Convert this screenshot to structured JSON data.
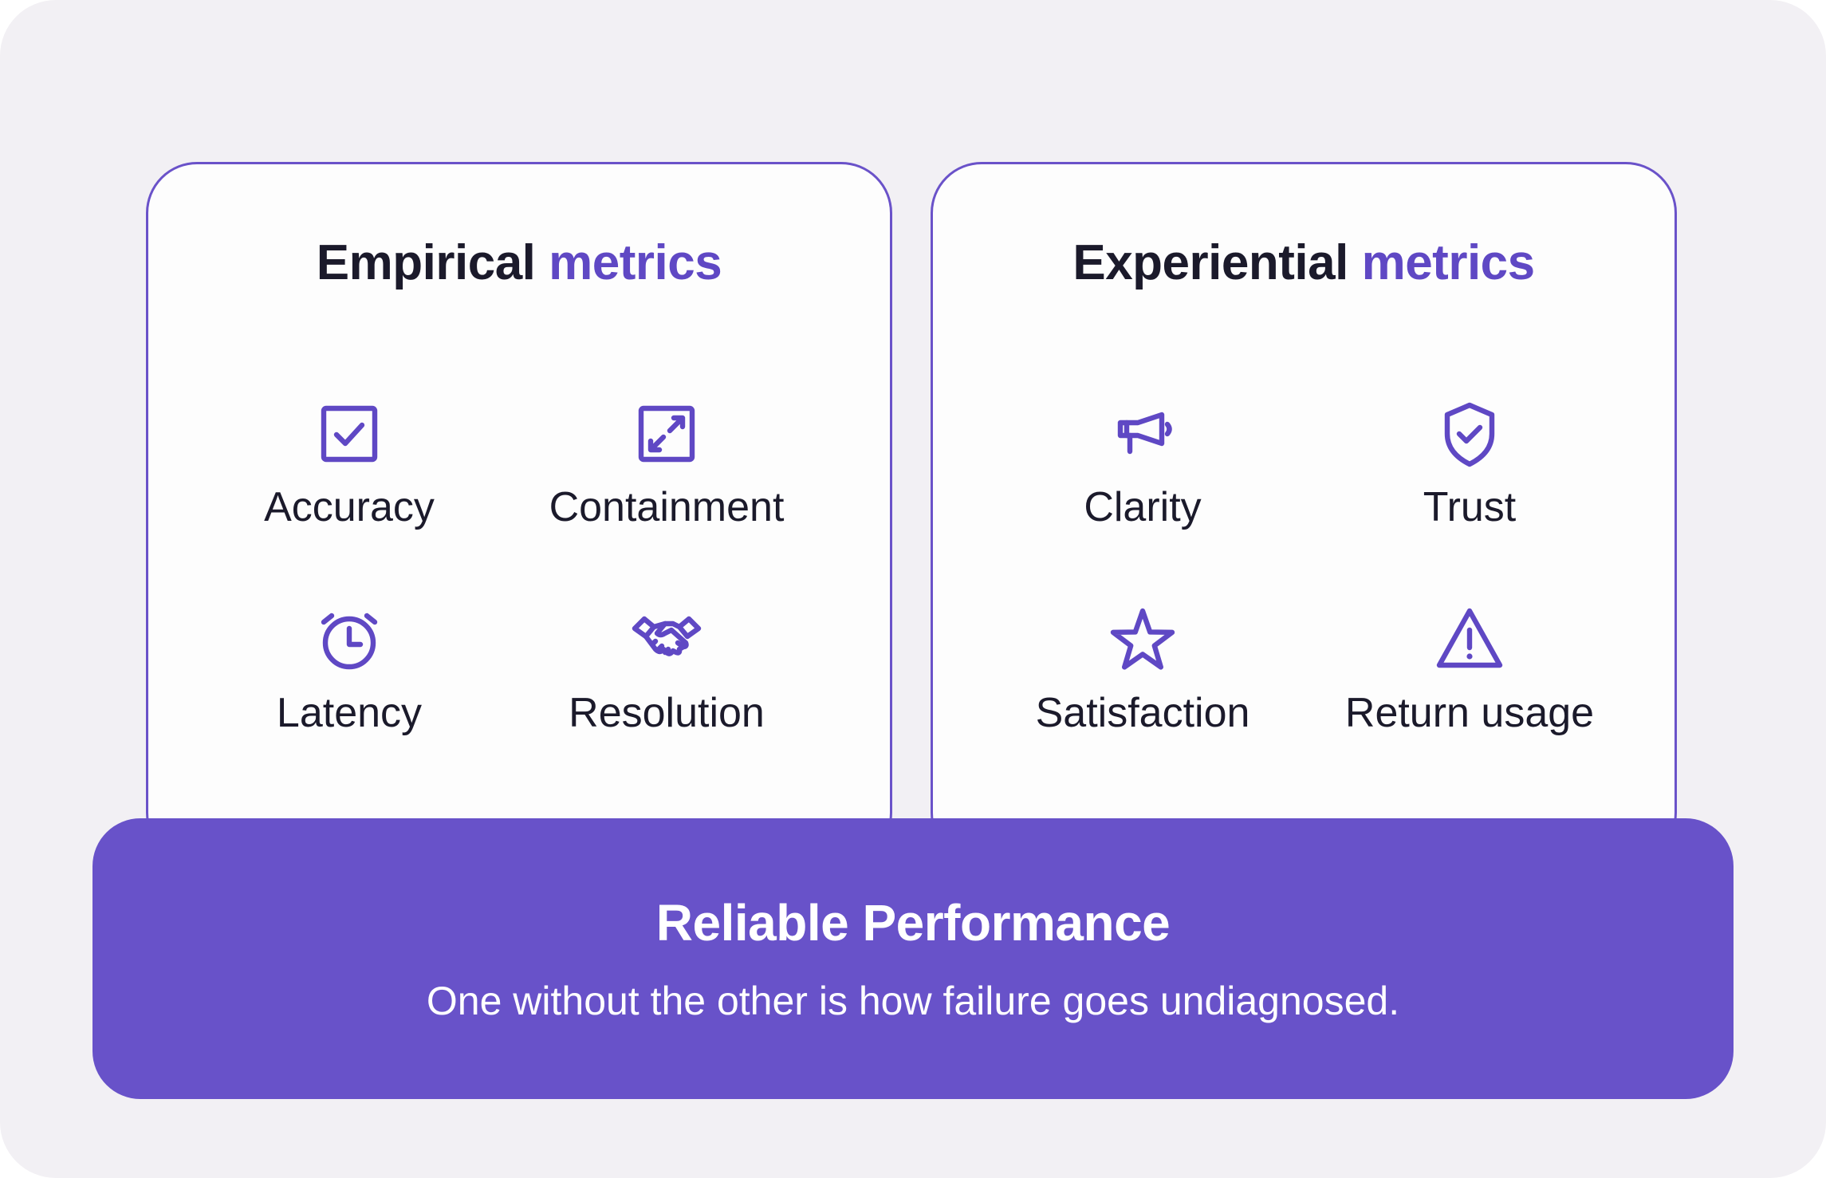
{
  "left_card": {
    "title_main": "Empirical",
    "title_accent": "metrics",
    "metrics": [
      {
        "label": "Accuracy",
        "icon": "checkbox-icon"
      },
      {
        "label": "Containment",
        "icon": "expand-arrows-icon"
      },
      {
        "label": "Latency",
        "icon": "alarm-clock-icon"
      },
      {
        "label": "Resolution",
        "icon": "handshake-icon"
      }
    ]
  },
  "right_card": {
    "title_main": "Experiential",
    "title_accent": "metrics",
    "metrics": [
      {
        "label": "Clarity",
        "icon": "megaphone-icon"
      },
      {
        "label": "Trust",
        "icon": "shield-check-icon"
      },
      {
        "label": "Satisfaction",
        "icon": "star-icon"
      },
      {
        "label": "Return usage",
        "icon": "warning-triangle-icon"
      }
    ]
  },
  "banner": {
    "title": "Reliable Performance",
    "subtitle": "One without the other is how failure goes undiagnosed."
  },
  "colors": {
    "accent": "#5f48c4",
    "banner": "#6852c9",
    "background": "#f2f0f4",
    "text": "#1b1a2b"
  }
}
